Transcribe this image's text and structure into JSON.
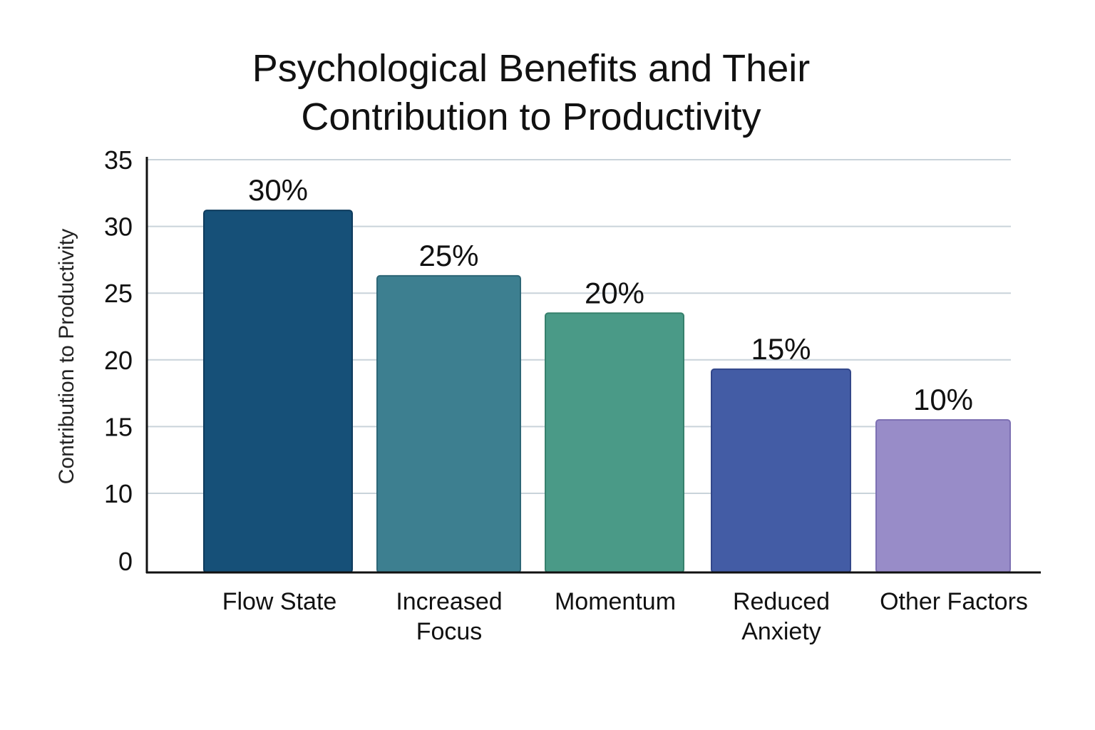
{
  "chart_data": {
    "type": "bar",
    "title_lines": [
      "Psychological Benefits and Their",
      "Contribution to Productivity"
    ],
    "ylabel": "Contribution to Productivity",
    "xlabel": "",
    "categories": [
      [
        "Flow State"
      ],
      [
        "Increased",
        "Focus"
      ],
      [
        "Momentum"
      ],
      [
        "Reduced",
        "Anxiety"
      ],
      [
        "Other Factors"
      ]
    ],
    "values": [
      30,
      25,
      20,
      15,
      10
    ],
    "data_labels": [
      "30%",
      "25%",
      "20%",
      "15%",
      "10%"
    ],
    "bar_tops_on_axis": [
      31.2,
      26.3,
      23.5,
      19.3,
      15.5
    ],
    "yticks": [
      0,
      10,
      15,
      20,
      25,
      30,
      35
    ],
    "ylim": [
      5,
      35
    ],
    "grid": true,
    "legend": "none",
    "colors": [
      "#165078",
      "#3d7f90",
      "#4a9a87",
      "#435ca5",
      "#988cc8"
    ],
    "bar_border_colors": [
      "#0d3a5c",
      "#2d6676",
      "#36806c",
      "#33478a",
      "#7d70b3"
    ],
    "axis_color": "#111111",
    "grid_color": "#c9d3da"
  }
}
